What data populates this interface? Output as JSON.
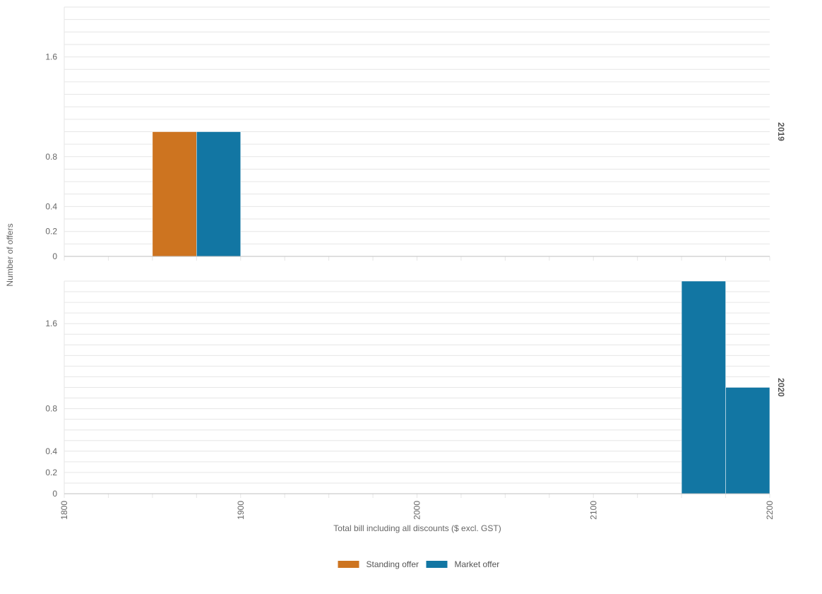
{
  "chart_data": {
    "type": "bar",
    "xlabel": "Total bill including all discounts ($ excl. GST)",
    "ylabel": "Number of offers",
    "x_ticks": [
      "1800",
      "1900",
      "2000",
      "2100",
      "2200"
    ],
    "xlim": [
      1800,
      2200
    ],
    "bin_width": 25,
    "grid": true,
    "legend_position": "bottom-center",
    "legend": [
      {
        "name": "Standing offer",
        "color": "#cd7420"
      },
      {
        "name": "Market offer",
        "color": "#1276a3"
      }
    ],
    "facets": [
      {
        "label": "2019",
        "ylim": [
          0,
          2
        ],
        "y_ticks": [
          "0",
          "0.2",
          "0.4",
          "0.8",
          "1.6"
        ],
        "y_tick_values": [
          0,
          0.2,
          0.4,
          0.8,
          1.6
        ],
        "bars": [
          {
            "series": "Standing offer",
            "x_start": 1850,
            "x_end": 1875,
            "value": 1
          },
          {
            "series": "Market offer",
            "x_start": 1875,
            "x_end": 1900,
            "value": 1
          }
        ]
      },
      {
        "label": "2020",
        "ylim": [
          0,
          2
        ],
        "y_ticks": [
          "0",
          "0.2",
          "0.4",
          "0.8",
          "1.6"
        ],
        "y_tick_values": [
          0,
          0.2,
          0.4,
          0.8,
          1.6
        ],
        "bars": [
          {
            "series": "Market offer",
            "x_start": 2150,
            "x_end": 2175,
            "value": 2
          },
          {
            "series": "Market offer",
            "x_start": 2175,
            "x_end": 2200,
            "value": 1
          }
        ]
      }
    ]
  }
}
